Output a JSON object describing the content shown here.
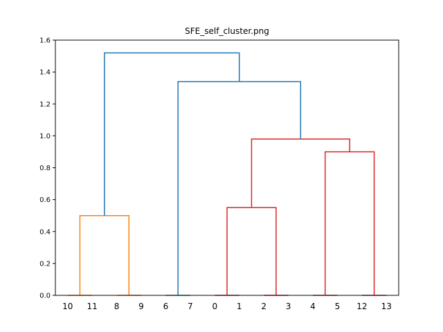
{
  "chart_data": {
    "type": "dendrogram",
    "title": "SFE_self_cluster.png",
    "xlabel": "",
    "ylabel": "",
    "ylim": [
      0,
      1.6
    ],
    "y_ticks": [
      "0.0",
      "0.2",
      "0.4",
      "0.6",
      "0.8",
      "1.0",
      "1.2",
      "1.4",
      "1.6"
    ],
    "leaves": [
      "10",
      "11",
      "8",
      "9",
      "6",
      "7",
      "0",
      "1",
      "2",
      "3",
      "4",
      "5",
      "12",
      "13"
    ],
    "colors": {
      "orange": "#ff7f0e",
      "green": "#2ca02c",
      "red": "#d62728",
      "blue": "#1f77b4"
    },
    "links": [
      {
        "left": 0,
        "right": 1,
        "height": 0.0,
        "left_h": 0.0,
        "right_h": 0.0,
        "color": "orange"
      },
      {
        "left": 2,
        "right": 3,
        "height": 0.0,
        "left_h": 0.0,
        "right_h": 0.0,
        "color": "orange"
      },
      {
        "left": 0.5,
        "right": 2.5,
        "height": 0.5,
        "left_h": 0.0,
        "right_h": 0.0,
        "color": "orange"
      },
      {
        "left": 4,
        "right": 5,
        "height": 0.0,
        "left_h": 0.0,
        "right_h": 0.0,
        "color": "green"
      },
      {
        "left": 6,
        "right": 7,
        "height": 0.0,
        "left_h": 0.0,
        "right_h": 0.0,
        "color": "red"
      },
      {
        "left": 8,
        "right": 9,
        "height": 0.0,
        "left_h": 0.0,
        "right_h": 0.0,
        "color": "red"
      },
      {
        "left": 6.5,
        "right": 8.5,
        "height": 0.55,
        "left_h": 0.0,
        "right_h": 0.0,
        "color": "red"
      },
      {
        "left": 10,
        "right": 11,
        "height": 0.0,
        "left_h": 0.0,
        "right_h": 0.0,
        "color": "red"
      },
      {
        "left": 12,
        "right": 13,
        "height": 0.0,
        "left_h": 0.0,
        "right_h": 0.0,
        "color": "red"
      },
      {
        "left": 10.5,
        "right": 12.5,
        "height": 0.9,
        "left_h": 0.0,
        "right_h": 0.0,
        "color": "red"
      },
      {
        "left": 7.5,
        "right": 11.5,
        "height": 0.98,
        "left_h": 0.55,
        "right_h": 0.9,
        "color": "red"
      },
      {
        "left": 4.5,
        "right": 9.5,
        "height": 1.34,
        "left_h": 0.0,
        "right_h": 0.98,
        "color": "blue"
      },
      {
        "left": 1.5,
        "right": 7.0,
        "height": 1.52,
        "left_h": 0.5,
        "right_h": 1.34,
        "color": "blue"
      }
    ]
  }
}
